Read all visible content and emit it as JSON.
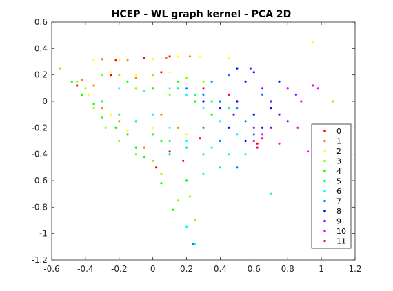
{
  "chart_data": {
    "type": "scatter",
    "title": "HCEP - WL graph kernel - PCA 2D",
    "xlabel": "",
    "ylabel": "",
    "xlim": [
      -0.6,
      1.2
    ],
    "ylim": [
      -1.2,
      0.6
    ],
    "xticks": [
      "-0.6",
      "-0.4",
      "-0.2",
      "0",
      "0.2",
      "0.4",
      "0.6",
      "0.8",
      "1",
      "1.2"
    ],
    "yticks": [
      "0.6",
      "0.4",
      "0.2",
      "0",
      "-0.2",
      "-0.4",
      "-0.6",
      "-0.8",
      "-1",
      "-1.2"
    ],
    "grid": false,
    "legend_position": "bottom-right",
    "series": [
      {
        "name": "0",
        "color": "#ff0000",
        "points": [
          [
            -0.22,
            0.31
          ],
          [
            -0.05,
            0.33
          ],
          [
            0.1,
            0.34
          ],
          [
            -0.45,
            0.12
          ],
          [
            -0.25,
            0.2
          ],
          [
            0.05,
            0.22
          ],
          [
            0.3,
            0.1
          ],
          [
            0.02,
            -0.5
          ],
          [
            0.18,
            -0.45
          ],
          [
            0.62,
            -0.32
          ],
          [
            0.45,
            0.05
          ]
        ]
      },
      {
        "name": "1",
        "color": "#ff8000",
        "points": [
          [
            -0.3,
            0.32
          ],
          [
            -0.15,
            0.31
          ],
          [
            0.08,
            0.33
          ],
          [
            0.22,
            0.34
          ],
          [
            -0.42,
            0.16
          ],
          [
            -0.35,
            0.12
          ],
          [
            -0.1,
            0.18
          ],
          [
            -0.3,
            -0.05
          ],
          [
            -0.2,
            -0.15
          ],
          [
            0.05,
            -0.1
          ],
          [
            0.15,
            -0.2
          ],
          [
            -0.05,
            -0.35
          ]
        ]
      },
      {
        "name": "2",
        "color": "#ffff00",
        "points": [
          [
            -0.35,
            0.31
          ],
          [
            -0.2,
            0.31
          ],
          [
            0.0,
            0.32
          ],
          [
            0.15,
            0.34
          ],
          [
            0.28,
            0.34
          ],
          [
            0.45,
            0.33
          ],
          [
            0.95,
            0.45
          ],
          [
            -0.25,
            0.22
          ],
          [
            -0.1,
            0.2
          ],
          [
            0.1,
            0.22
          ],
          [
            -0.38,
            0.05
          ],
          [
            -0.25,
            -0.1
          ],
          [
            -0.15,
            -0.22
          ],
          [
            0.0,
            -0.2
          ],
          [
            0.2,
            -0.25
          ]
        ]
      },
      {
        "name": "3",
        "color": "#80ff00",
        "points": [
          [
            -0.55,
            0.25
          ],
          [
            -0.45,
            0.15
          ],
          [
            -0.4,
            0.1
          ],
          [
            -0.3,
            0.2
          ],
          [
            -0.2,
            0.2
          ],
          [
            0.0,
            0.2
          ],
          [
            0.2,
            0.18
          ],
          [
            -0.35,
            -0.05
          ],
          [
            -0.28,
            -0.2
          ],
          [
            -0.2,
            -0.3
          ],
          [
            -0.1,
            -0.4
          ],
          [
            0.0,
            -0.45
          ],
          [
            0.05,
            -0.55
          ],
          [
            0.15,
            -0.75
          ],
          [
            0.22,
            -0.72
          ],
          [
            0.25,
            -0.9
          ],
          [
            1.07,
            0.0
          ],
          [
            -0.1,
            0.1
          ],
          [
            0.1,
            0.05
          ],
          [
            0.3,
            0.15
          ]
        ]
      },
      {
        "name": "4",
        "color": "#00ff00",
        "points": [
          [
            -0.48,
            0.15
          ],
          [
            -0.42,
            0.05
          ],
          [
            -0.35,
            -0.02
          ],
          [
            -0.3,
            -0.12
          ],
          [
            -0.22,
            -0.2
          ],
          [
            -0.15,
            -0.25
          ],
          [
            -0.1,
            -0.35
          ],
          [
            -0.05,
            -0.42
          ],
          [
            0.05,
            -0.3
          ],
          [
            0.1,
            -0.4
          ],
          [
            0.2,
            -0.6
          ],
          [
            0.12,
            -0.82
          ],
          [
            -0.15,
            0.15
          ],
          [
            0.0,
            0.1
          ],
          [
            0.15,
            0.15
          ],
          [
            0.25,
            0.0
          ],
          [
            0.35,
            -0.1
          ],
          [
            0.05,
            -0.62
          ]
        ]
      },
      {
        "name": "5",
        "color": "#00ff80",
        "points": [
          [
            -0.3,
            0.0
          ],
          [
            -0.2,
            -0.1
          ],
          [
            -0.1,
            -0.15
          ],
          [
            0.0,
            -0.25
          ],
          [
            0.1,
            -0.3
          ],
          [
            0.2,
            -0.35
          ],
          [
            0.3,
            -0.4
          ],
          [
            0.15,
            0.1
          ],
          [
            0.25,
            0.05
          ],
          [
            0.35,
            0.0
          ],
          [
            0.45,
            -0.05
          ],
          [
            0.3,
            -0.55
          ],
          [
            0.4,
            -0.5
          ],
          [
            0.7,
            -0.7
          ]
        ]
      },
      {
        "name": "6",
        "color": "#00ffff",
        "points": [
          [
            -0.2,
            0.1
          ],
          [
            -0.05,
            0.08
          ],
          [
            0.1,
            0.1
          ],
          [
            0.2,
            0.05
          ],
          [
            0.3,
            -0.05
          ],
          [
            0.4,
            -0.15
          ],
          [
            0.5,
            -0.25
          ],
          [
            0.55,
            -0.4
          ],
          [
            0.0,
            -0.1
          ],
          [
            0.1,
            -0.2
          ],
          [
            0.2,
            -0.3
          ],
          [
            0.35,
            -0.35
          ],
          [
            0.45,
            -0.4
          ],
          [
            0.25,
            -1.08
          ],
          [
            0.2,
            -0.95
          ]
        ]
      },
      {
        "name": "7",
        "color": "#0080ff",
        "points": [
          [
            0.2,
            0.1
          ],
          [
            0.3,
            0.05
          ],
          [
            0.4,
            0.0
          ],
          [
            0.5,
            -0.05
          ],
          [
            0.55,
            -0.15
          ],
          [
            0.6,
            -0.25
          ],
          [
            0.3,
            -0.2
          ],
          [
            0.4,
            -0.3
          ],
          [
            0.35,
            0.15
          ],
          [
            0.45,
            0.2
          ],
          [
            0.55,
            0.15
          ],
          [
            0.65,
            0.05
          ],
          [
            0.24,
            -1.08
          ],
          [
            0.5,
            -0.5
          ]
        ]
      },
      {
        "name": "8",
        "color": "#0000ff",
        "points": [
          [
            0.3,
            0.0
          ],
          [
            0.4,
            -0.05
          ],
          [
            0.5,
            0.0
          ],
          [
            0.6,
            -0.1
          ],
          [
            0.65,
            -0.2
          ],
          [
            0.7,
            -0.05
          ],
          [
            0.5,
            0.25
          ],
          [
            0.6,
            0.22
          ],
          [
            0.75,
            0.15
          ],
          [
            0.8,
            0.1
          ],
          [
            0.45,
            -0.2
          ],
          [
            0.55,
            -0.3
          ]
        ]
      },
      {
        "name": "9",
        "color": "#8000ff",
        "points": [
          [
            0.55,
            0.15
          ],
          [
            0.65,
            0.1
          ],
          [
            0.7,
            0.0
          ],
          [
            0.75,
            -0.1
          ],
          [
            0.8,
            -0.15
          ],
          [
            0.85,
            0.05
          ],
          [
            0.6,
            -0.2
          ],
          [
            0.7,
            -0.2
          ],
          [
            0.48,
            -0.1
          ],
          [
            0.58,
            0.25
          ]
        ]
      },
      {
        "name": "10",
        "color": "#ff00ff",
        "points": [
          [
            0.95,
            0.12
          ],
          [
            0.98,
            0.1
          ],
          [
            0.88,
            0.0
          ],
          [
            0.86,
            -0.2
          ],
          [
            0.92,
            -0.38
          ],
          [
            0.8,
            0.1
          ],
          [
            0.65,
            -0.25
          ],
          [
            0.75,
            -0.32
          ]
        ]
      },
      {
        "name": "11",
        "color": "#ff0080",
        "points": [
          [
            0.6,
            -0.3
          ],
          [
            0.62,
            -0.35
          ],
          [
            0.65,
            -0.28
          ],
          [
            0.28,
            -0.28
          ],
          [
            0.1,
            -0.38
          ]
        ]
      }
    ]
  }
}
